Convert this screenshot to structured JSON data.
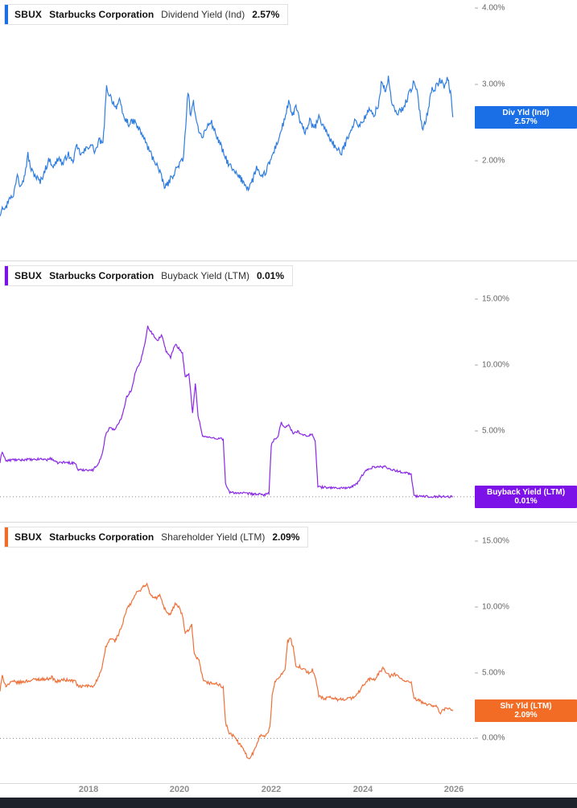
{
  "panels": [
    {
      "ticker": "SBUX",
      "company": "Starbucks Corporation",
      "metric": "Dividend Yield (Ind)",
      "value": "2.57%",
      "badge": {
        "label": "Div Yld (Ind)",
        "value": "2.57%"
      }
    },
    {
      "ticker": "SBUX",
      "company": "Starbucks Corporation",
      "metric": "Buyback Yield (LTM)",
      "value": "0.01%",
      "badge": {
        "label": "Buyback Yield (LTM)",
        "value": "0.01%"
      }
    },
    {
      "ticker": "SBUX",
      "company": "Starbucks Corporation",
      "metric": "Shareholder Yield (LTM)",
      "value": "2.09%",
      "badge": {
        "label": "Shr Yld (LTM)",
        "value": "2.09%"
      }
    }
  ],
  "x_axis": {
    "ticks": [
      {
        "value": 2018,
        "label": "2018"
      },
      {
        "value": 2020,
        "label": "2020"
      },
      {
        "value": 2022,
        "label": "2022"
      },
      {
        "value": 2024,
        "label": "2024"
      },
      {
        "value": 2026,
        "label": "2026"
      }
    ]
  },
  "chart_data": [
    {
      "type": "line",
      "title": "SBUX Dividend Yield (Ind)",
      "series_name": "Div Yld (Ind)",
      "color": "#2e7de0",
      "badge_color": "#1a6ee6",
      "xlim": [
        2016.07,
        2026.45
      ],
      "ylim": [
        0.7,
        4.1
      ],
      "yticks": [
        {
          "value": 2,
          "label": "2.00%"
        },
        {
          "value": 3,
          "label": "3.00%"
        },
        {
          "value": 4,
          "label": "4.00%"
        }
      ],
      "zero_line": false,
      "noise": 0.045,
      "last_value": 2.57,
      "points": [
        [
          2016.07,
          1.3
        ],
        [
          2016.12,
          1.42
        ],
        [
          2016.2,
          1.38
        ],
        [
          2016.28,
          1.55
        ],
        [
          2016.35,
          1.5
        ],
        [
          2016.45,
          1.85
        ],
        [
          2016.5,
          1.7
        ],
        [
          2016.6,
          1.78
        ],
        [
          2016.68,
          2.08
        ],
        [
          2016.75,
          1.88
        ],
        [
          2016.85,
          1.8
        ],
        [
          2016.95,
          1.72
        ],
        [
          2017.05,
          1.88
        ],
        [
          2017.15,
          2.02
        ],
        [
          2017.25,
          1.92
        ],
        [
          2017.35,
          2.05
        ],
        [
          2017.45,
          1.95
        ],
        [
          2017.55,
          2.1
        ],
        [
          2017.65,
          1.98
        ],
        [
          2017.75,
          2.18
        ],
        [
          2017.85,
          2.08
        ],
        [
          2017.95,
          2.15
        ],
        [
          2018.05,
          2.22
        ],
        [
          2018.15,
          2.12
        ],
        [
          2018.25,
          2.28
        ],
        [
          2018.32,
          2.2
        ],
        [
          2018.4,
          2.95
        ],
        [
          2018.5,
          2.82
        ],
        [
          2018.6,
          2.7
        ],
        [
          2018.68,
          2.78
        ],
        [
          2018.78,
          2.56
        ],
        [
          2018.9,
          2.48
        ],
        [
          2019.0,
          2.52
        ],
        [
          2019.1,
          2.42
        ],
        [
          2019.2,
          2.32
        ],
        [
          2019.3,
          2.18
        ],
        [
          2019.4,
          2.05
        ],
        [
          2019.5,
          1.95
        ],
        [
          2019.6,
          1.78
        ],
        [
          2019.68,
          1.65
        ],
        [
          2019.78,
          1.74
        ],
        [
          2019.88,
          1.85
        ],
        [
          2019.98,
          1.95
        ],
        [
          2020.08,
          2.02
        ],
        [
          2020.18,
          2.92
        ],
        [
          2020.24,
          2.55
        ],
        [
          2020.3,
          2.78
        ],
        [
          2020.38,
          2.48
        ],
        [
          2020.48,
          2.3
        ],
        [
          2020.58,
          2.42
        ],
        [
          2020.68,
          2.52
        ],
        [
          2020.78,
          2.36
        ],
        [
          2020.88,
          2.22
        ],
        [
          2020.98,
          2.06
        ],
        [
          2021.08,
          1.95
        ],
        [
          2021.18,
          1.86
        ],
        [
          2021.28,
          1.8
        ],
        [
          2021.4,
          1.72
        ],
        [
          2021.5,
          1.64
        ],
        [
          2021.6,
          1.76
        ],
        [
          2021.68,
          1.92
        ],
        [
          2021.78,
          1.76
        ],
        [
          2021.88,
          1.86
        ],
        [
          2021.98,
          2.0
        ],
        [
          2022.08,
          2.16
        ],
        [
          2022.18,
          2.32
        ],
        [
          2022.28,
          2.52
        ],
        [
          2022.38,
          2.76
        ],
        [
          2022.46,
          2.58
        ],
        [
          2022.54,
          2.72
        ],
        [
          2022.64,
          2.48
        ],
        [
          2022.74,
          2.38
        ],
        [
          2022.84,
          2.52
        ],
        [
          2022.94,
          2.42
        ],
        [
          2023.04,
          2.56
        ],
        [
          2023.14,
          2.46
        ],
        [
          2023.24,
          2.34
        ],
        [
          2023.34,
          2.24
        ],
        [
          2023.44,
          2.14
        ],
        [
          2023.54,
          2.1
        ],
        [
          2023.64,
          2.26
        ],
        [
          2023.74,
          2.42
        ],
        [
          2023.84,
          2.52
        ],
        [
          2023.94,
          2.46
        ],
        [
          2024.04,
          2.56
        ],
        [
          2024.14,
          2.66
        ],
        [
          2024.24,
          2.6
        ],
        [
          2024.34,
          2.72
        ],
        [
          2024.42,
          3.06
        ],
        [
          2024.5,
          2.88
        ],
        [
          2024.56,
          3.1
        ],
        [
          2024.64,
          2.72
        ],
        [
          2024.74,
          2.62
        ],
        [
          2024.84,
          2.66
        ],
        [
          2024.94,
          2.76
        ],
        [
          2025.04,
          2.92
        ],
        [
          2025.12,
          3.02
        ],
        [
          2025.2,
          2.86
        ],
        [
          2025.3,
          2.42
        ],
        [
          2025.4,
          2.58
        ],
        [
          2025.5,
          2.92
        ],
        [
          2025.6,
          2.96
        ],
        [
          2025.7,
          3.06
        ],
        [
          2025.78,
          2.96
        ],
        [
          2025.86,
          3.08
        ],
        [
          2025.92,
          2.88
        ],
        [
          2025.97,
          2.57
        ]
      ]
    },
    {
      "type": "line",
      "title": "SBUX Buyback Yield (LTM)",
      "series_name": "Buyback Yield (LTM)",
      "color": "#8a27e8",
      "badge_color": "#7d12e8",
      "xlim": [
        2016.07,
        2026.45
      ],
      "ylim": [
        -1.9,
        17.9
      ],
      "yticks": [
        {
          "value": 5,
          "label": "5.00%"
        },
        {
          "value": 10,
          "label": "10.00%"
        },
        {
          "value": 15,
          "label": "15.00%"
        }
      ],
      "zero_line": true,
      "noise": 0.09,
      "last_value": 0.01,
      "points": [
        [
          2016.07,
          2.6
        ],
        [
          2016.12,
          3.45
        ],
        [
          2016.2,
          2.72
        ],
        [
          2016.35,
          2.82
        ],
        [
          2016.5,
          2.78
        ],
        [
          2016.65,
          2.85
        ],
        [
          2016.8,
          2.8
        ],
        [
          2016.95,
          2.88
        ],
        [
          2017.1,
          2.82
        ],
        [
          2017.2,
          2.92
        ],
        [
          2017.3,
          2.58
        ],
        [
          2017.45,
          2.62
        ],
        [
          2017.6,
          2.58
        ],
        [
          2017.72,
          2.55
        ],
        [
          2017.78,
          2.02
        ],
        [
          2017.95,
          2.06
        ],
        [
          2018.1,
          2.02
        ],
        [
          2018.22,
          2.55
        ],
        [
          2018.3,
          3.15
        ],
        [
          2018.38,
          4.75
        ],
        [
          2018.48,
          5.3
        ],
        [
          2018.58,
          5.05
        ],
        [
          2018.66,
          5.55
        ],
        [
          2018.74,
          6.2
        ],
        [
          2018.84,
          7.6
        ],
        [
          2018.94,
          8.1
        ],
        [
          2019.04,
          9.6
        ],
        [
          2019.14,
          10.2
        ],
        [
          2019.22,
          11.4
        ],
        [
          2019.3,
          12.95
        ],
        [
          2019.36,
          12.6
        ],
        [
          2019.44,
          12.2
        ],
        [
          2019.52,
          11.9
        ],
        [
          2019.6,
          12.3
        ],
        [
          2019.7,
          11.1
        ],
        [
          2019.8,
          10.6
        ],
        [
          2019.9,
          11.6
        ],
        [
          2019.98,
          11.3
        ],
        [
          2020.06,
          10.9
        ],
        [
          2020.12,
          9.1
        ],
        [
          2020.2,
          9.3
        ],
        [
          2020.28,
          6.4
        ],
        [
          2020.34,
          8.6
        ],
        [
          2020.4,
          6.2
        ],
        [
          2020.5,
          4.6
        ],
        [
          2020.65,
          4.5
        ],
        [
          2020.8,
          4.45
        ],
        [
          2020.95,
          4.4
        ],
        [
          2021.0,
          1.0
        ],
        [
          2021.08,
          0.35
        ],
        [
          2021.25,
          0.3
        ],
        [
          2021.45,
          0.25
        ],
        [
          2021.65,
          0.2
        ],
        [
          2021.85,
          0.15
        ],
        [
          2021.95,
          0.3
        ],
        [
          2022.0,
          3.9
        ],
        [
          2022.06,
          4.3
        ],
        [
          2022.14,
          4.5
        ],
        [
          2022.22,
          5.6
        ],
        [
          2022.3,
          5.3
        ],
        [
          2022.38,
          5.45
        ],
        [
          2022.48,
          4.8
        ],
        [
          2022.58,
          5.0
        ],
        [
          2022.68,
          4.7
        ],
        [
          2022.78,
          4.6
        ],
        [
          2022.88,
          4.8
        ],
        [
          2022.96,
          4.3
        ],
        [
          2023.02,
          0.75
        ],
        [
          2023.15,
          0.72
        ],
        [
          2023.3,
          0.7
        ],
        [
          2023.45,
          0.66
        ],
        [
          2023.6,
          0.68
        ],
        [
          2023.75,
          0.72
        ],
        [
          2023.88,
          1.0
        ],
        [
          2023.98,
          1.6
        ],
        [
          2024.08,
          2.0
        ],
        [
          2024.18,
          2.2
        ],
        [
          2024.3,
          2.3
        ],
        [
          2024.4,
          2.26
        ],
        [
          2024.5,
          2.3
        ],
        [
          2024.6,
          2.1
        ],
        [
          2024.7,
          2.0
        ],
        [
          2024.8,
          1.92
        ],
        [
          2024.9,
          1.86
        ],
        [
          2025.0,
          1.8
        ],
        [
          2025.06,
          1.7
        ],
        [
          2025.12,
          0.05
        ],
        [
          2025.3,
          0.03
        ],
        [
          2025.5,
          0.02
        ],
        [
          2025.7,
          0.02
        ],
        [
          2025.85,
          0.01
        ],
        [
          2025.97,
          0.01
        ]
      ]
    },
    {
      "type": "line",
      "title": "SBUX Shareholder Yield (LTM)",
      "series_name": "Shr Yld (LTM)",
      "color": "#f0703a",
      "badge_color": "#f26c26",
      "xlim": [
        2016.07,
        2026.45
      ],
      "ylim": [
        -3.4,
        16.4
      ],
      "yticks": [
        {
          "value": 0,
          "label": "0.00%"
        },
        {
          "value": 5,
          "label": "5.00%"
        },
        {
          "value": 10,
          "label": "10.00%"
        },
        {
          "value": 15,
          "label": "15.00%"
        }
      ],
      "zero_line": true,
      "noise": 0.12,
      "last_value": 2.09,
      "points": [
        [
          2016.07,
          3.6
        ],
        [
          2016.12,
          4.7
        ],
        [
          2016.2,
          4.0
        ],
        [
          2016.35,
          4.3
        ],
        [
          2016.5,
          4.25
        ],
        [
          2016.65,
          4.35
        ],
        [
          2016.8,
          4.45
        ],
        [
          2016.95,
          4.5
        ],
        [
          2017.1,
          4.5
        ],
        [
          2017.2,
          4.65
        ],
        [
          2017.3,
          4.3
        ],
        [
          2017.45,
          4.45
        ],
        [
          2017.6,
          4.4
        ],
        [
          2017.72,
          4.35
        ],
        [
          2017.78,
          3.9
        ],
        [
          2017.95,
          4.0
        ],
        [
          2018.1,
          3.95
        ],
        [
          2018.22,
          4.6
        ],
        [
          2018.3,
          5.3
        ],
        [
          2018.38,
          6.9
        ],
        [
          2018.48,
          7.6
        ],
        [
          2018.58,
          7.4
        ],
        [
          2018.66,
          7.9
        ],
        [
          2018.74,
          8.6
        ],
        [
          2018.84,
          9.8
        ],
        [
          2018.94,
          10.3
        ],
        [
          2019.04,
          11.0
        ],
        [
          2019.14,
          11.3
        ],
        [
          2019.22,
          11.6
        ],
        [
          2019.28,
          11.7
        ],
        [
          2019.36,
          10.9
        ],
        [
          2019.46,
          10.6
        ],
        [
          2019.56,
          10.9
        ],
        [
          2019.66,
          9.9
        ],
        [
          2019.78,
          9.4
        ],
        [
          2019.9,
          10.2
        ],
        [
          2019.98,
          10.0
        ],
        [
          2020.06,
          9.3
        ],
        [
          2020.12,
          8.0
        ],
        [
          2020.2,
          8.2
        ],
        [
          2020.26,
          8.6
        ],
        [
          2020.32,
          6.3
        ],
        [
          2020.42,
          5.9
        ],
        [
          2020.52,
          4.3
        ],
        [
          2020.65,
          4.2
        ],
        [
          2020.8,
          4.15
        ],
        [
          2020.95,
          3.9
        ],
        [
          2021.0,
          1.2
        ],
        [
          2021.08,
          0.4
        ],
        [
          2021.18,
          0.15
        ],
        [
          2021.28,
          -0.3
        ],
        [
          2021.4,
          -0.9
        ],
        [
          2021.5,
          -1.55
        ],
        [
          2021.6,
          -1.15
        ],
        [
          2021.68,
          -0.4
        ],
        [
          2021.76,
          0.25
        ],
        [
          2021.84,
          0.1
        ],
        [
          2021.92,
          0.45
        ],
        [
          2021.97,
          0.8
        ],
        [
          2022.02,
          3.2
        ],
        [
          2022.08,
          4.35
        ],
        [
          2022.16,
          4.6
        ],
        [
          2022.24,
          5.0
        ],
        [
          2022.3,
          5.2
        ],
        [
          2022.36,
          7.4
        ],
        [
          2022.42,
          7.6
        ],
        [
          2022.48,
          6.9
        ],
        [
          2022.54,
          5.4
        ],
        [
          2022.62,
          5.5
        ],
        [
          2022.72,
          5.2
        ],
        [
          2022.82,
          5.0
        ],
        [
          2022.9,
          5.2
        ],
        [
          2022.96,
          4.7
        ],
        [
          2023.04,
          3.2
        ],
        [
          2023.16,
          3.0
        ],
        [
          2023.3,
          3.1
        ],
        [
          2023.45,
          2.95
        ],
        [
          2023.6,
          3.0
        ],
        [
          2023.75,
          3.05
        ],
        [
          2023.88,
          3.3
        ],
        [
          2023.98,
          3.9
        ],
        [
          2024.08,
          4.3
        ],
        [
          2024.18,
          4.6
        ],
        [
          2024.26,
          4.4
        ],
        [
          2024.36,
          5.0
        ],
        [
          2024.44,
          5.3
        ],
        [
          2024.52,
          5.0
        ],
        [
          2024.6,
          4.7
        ],
        [
          2024.7,
          4.9
        ],
        [
          2024.8,
          4.6
        ],
        [
          2024.9,
          4.4
        ],
        [
          2025.0,
          4.3
        ],
        [
          2025.06,
          4.2
        ],
        [
          2025.12,
          3.0
        ],
        [
          2025.22,
          2.9
        ],
        [
          2025.32,
          2.7
        ],
        [
          2025.42,
          2.6
        ],
        [
          2025.52,
          2.5
        ],
        [
          2025.62,
          2.4
        ],
        [
          2025.7,
          1.9
        ],
        [
          2025.8,
          2.3
        ],
        [
          2025.9,
          2.2
        ],
        [
          2025.97,
          2.09
        ]
      ]
    }
  ]
}
